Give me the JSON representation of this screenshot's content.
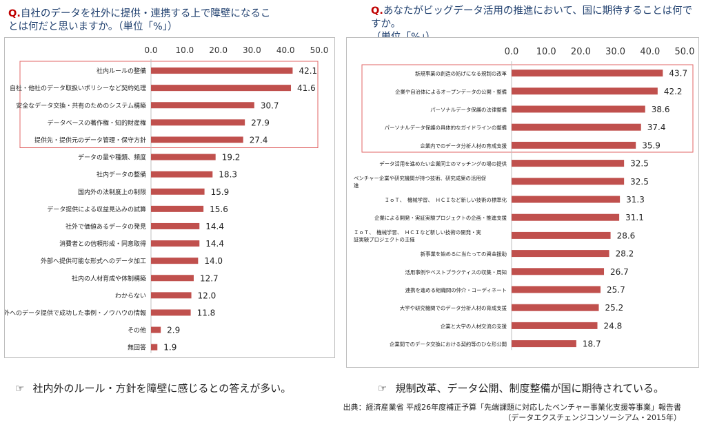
{
  "left": {
    "question_mark": "Q.",
    "question_line1": "自社のデータを社外に提供・連携する上で障壁になるこ",
    "question_line2": "とは何だと思いますか。（単位「%」）",
    "note_icon": "pointing-hand-icon",
    "note_glyph": "☞",
    "note": "社内外のルール・方針を障壁に感じるとの答えが多い。"
  },
  "right": {
    "question_mark": "Q.",
    "question_line1": "あなたがビッグデータ活用の推進において、国に期待することは何ですか。",
    "question_line2": "（単位「%」）",
    "note_icon": "pointing-hand-icon",
    "note_glyph": "☞",
    "note": "規制改革、データ公開、制度整備が国に期待されている。"
  },
  "source": {
    "line1": "出典：経済産業省 平成26年度補正予算「先端課題に対応したベンチャー事業化支援等事業」報告書",
    "line2": "（データエクスチェンジコンソーシアム・2015年）"
  },
  "colors": {
    "bar": "#c0504d",
    "highlight_box": "#e06666",
    "question_text": "#1f3f6e",
    "question_mark": "#c00000"
  },
  "chart_data": [
    {
      "type": "bar",
      "orientation": "horizontal",
      "xlim": [
        0,
        50
      ],
      "xticks": [
        "0.0",
        "10.0",
        "20.0",
        "30.0",
        "40.0",
        "50.0"
      ],
      "grid": false,
      "highlighted_range": [
        0,
        4
      ],
      "categories": [
        "社内ルールの整備",
        "自社・他社のデータ取扱いポリシーなど契約処理",
        "安全なデータ交換・共有のためのシステム構築",
        "データベースの著作権・知的財産権",
        "提供先・提供元のデータ管理・保守方針",
        "データの量や種類、頻度",
        "社内データの整備",
        "国内外の法制度上の制限",
        "データ提供による収益見込みの試算",
        "社外で価値あるデータの発見",
        "消費者との信頼形成・同意取得",
        "外部へ提供可能な形式へのデータ加工",
        "社内の人材育成や体制構築",
        "わからない",
        "社外へのデータ提供で成功した事例・ノウハウの情報",
        "その他",
        "無回答"
      ],
      "values": [
        42.1,
        41.6,
        30.7,
        27.9,
        27.4,
        19.2,
        18.3,
        15.9,
        15.6,
        14.4,
        14.4,
        14.0,
        12.7,
        12.0,
        11.8,
        2.9,
        1.9
      ],
      "labels": [
        "42.1",
        "41.6",
        "30.7",
        "27.9",
        "27.4",
        "19.2",
        "18.3",
        "15.9",
        "15.6",
        "14.4",
        "14.4",
        "14.0",
        "12.7",
        "12.0",
        "11.8",
        "2.9",
        "1.9"
      ]
    },
    {
      "type": "bar",
      "orientation": "horizontal",
      "xlim": [
        0,
        50
      ],
      "xticks": [
        "0.0",
        "10.0",
        "20.0",
        "30.0",
        "40.0",
        "50.0"
      ],
      "grid": false,
      "highlighted_range": [
        0,
        4
      ],
      "categories": [
        "新規事業の創造の妨げになる規制の改革",
        "企業や自治体によるオープンデータの公開・整備",
        "パーソナルデータ保護の法律整備",
        "パーソナルデータ保護の具体的なガイドラインの整備",
        "企業内でのデータ分析人材の育成支援",
        "データ活用を進めたい企業同士のマッチングの場の提供",
        "ベンチャー企業や研究機関が持つ技術、研究成果の活用促進",
        "ＩｏＴ、　機械学習、　ＨＣＩなど新しい技術の標準化",
        "企業による開発・実証実験プロジェクトの企画・推進支援",
        "ＩｏＴ、　機械学習、　ＨＣＩなど新しい技術の開発・実証実験プロジェクトの主催",
        "新事業を始めるに当たっての資金援助",
        "活用事例やベストプラクティスの収集・周知",
        "連携を進める組織間の仲介・コーディネート",
        "大学や研究機関でのデータ分析人材の育成支援",
        "企業と大学の人材交流の支援",
        "企業間でのデータ交換における契約等のひな形公開"
      ],
      "values": [
        43.7,
        42.2,
        38.6,
        37.4,
        35.9,
        32.5,
        32.5,
        31.3,
        31.1,
        28.6,
        28.2,
        26.7,
        25.7,
        25.2,
        24.8,
        18.7
      ],
      "labels": [
        "43.7",
        "42.2",
        "38.6",
        "37.4",
        "35.9",
        "32.5",
        "32.5",
        "31.3",
        "31.1",
        "28.6",
        "28.2",
        "26.7",
        "25.7",
        "25.2",
        "24.8",
        "18.7"
      ]
    }
  ]
}
